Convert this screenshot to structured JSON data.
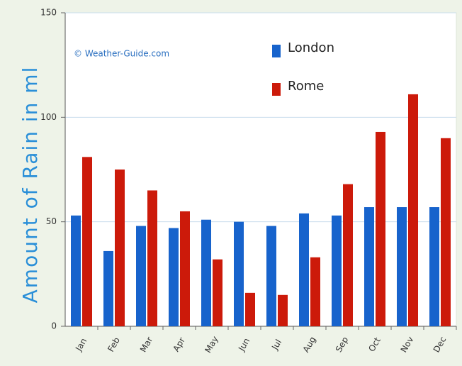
{
  "chart_data": {
    "type": "bar",
    "y_label": "Amount of Rain in ml",
    "annotation": "© Weather-Guide.com",
    "categories": [
      "Jan",
      "Feb",
      "Mar",
      "Apr",
      "May",
      "Jun",
      "Jul",
      "Aug",
      "Sep",
      "Oct",
      "Nov",
      "Dec"
    ],
    "series": [
      {
        "name": "London",
        "color": "#1763cc",
        "values": [
          53,
          36,
          48,
          47,
          51,
          50,
          48,
          54,
          53,
          57,
          57,
          57
        ]
      },
      {
        "name": "Rome",
        "color": "#cc1a0a",
        "values": [
          81,
          75,
          65,
          55,
          32,
          16,
          15,
          33,
          68,
          93,
          111,
          90
        ]
      }
    ],
    "ylim": [
      0,
      150
    ],
    "yticks": [
      0,
      50,
      100,
      150
    ],
    "grid": true
  }
}
